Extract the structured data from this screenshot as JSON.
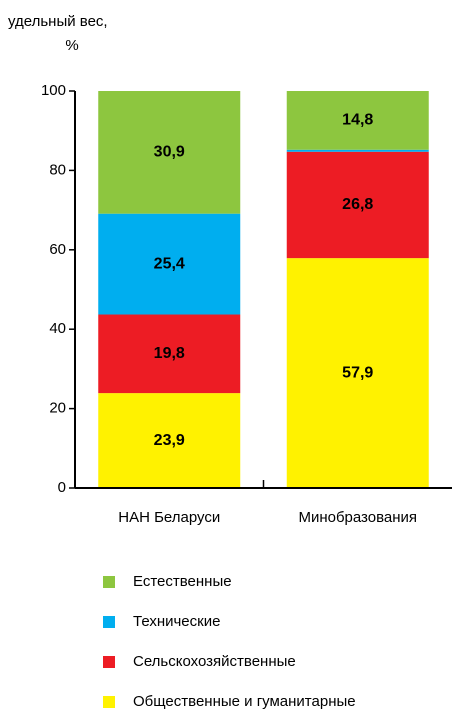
{
  "chart_data": {
    "type": "stacked_bar",
    "ylabel": [
      "удельный вес,",
      "%"
    ],
    "categories": [
      "НАН Беларуси",
      "Минобразования"
    ],
    "series": [
      {
        "name": "Общественные и гуманитарные",
        "color": "#fff200",
        "values": [
          23.9,
          57.9
        ],
        "value_labels": [
          "23,9",
          "57,9"
        ]
      },
      {
        "name": "Сельскохозяйственные",
        "color": "#ed1c24",
        "values": [
          19.8,
          26.8
        ],
        "value_labels": [
          "19,8",
          "26,8"
        ]
      },
      {
        "name": "Технические",
        "color": "#00aeef",
        "values": [
          25.4,
          0.5
        ],
        "value_labels": [
          "25,4",
          null
        ]
      },
      {
        "name": "Естественные",
        "color": "#8dc63f",
        "values": [
          30.9,
          14.8
        ],
        "value_labels": [
          "30,9",
          "14,8"
        ]
      }
    ],
    "ylim": [
      0,
      100
    ],
    "yticks": [
      0,
      20,
      40,
      60,
      80,
      100
    ]
  }
}
